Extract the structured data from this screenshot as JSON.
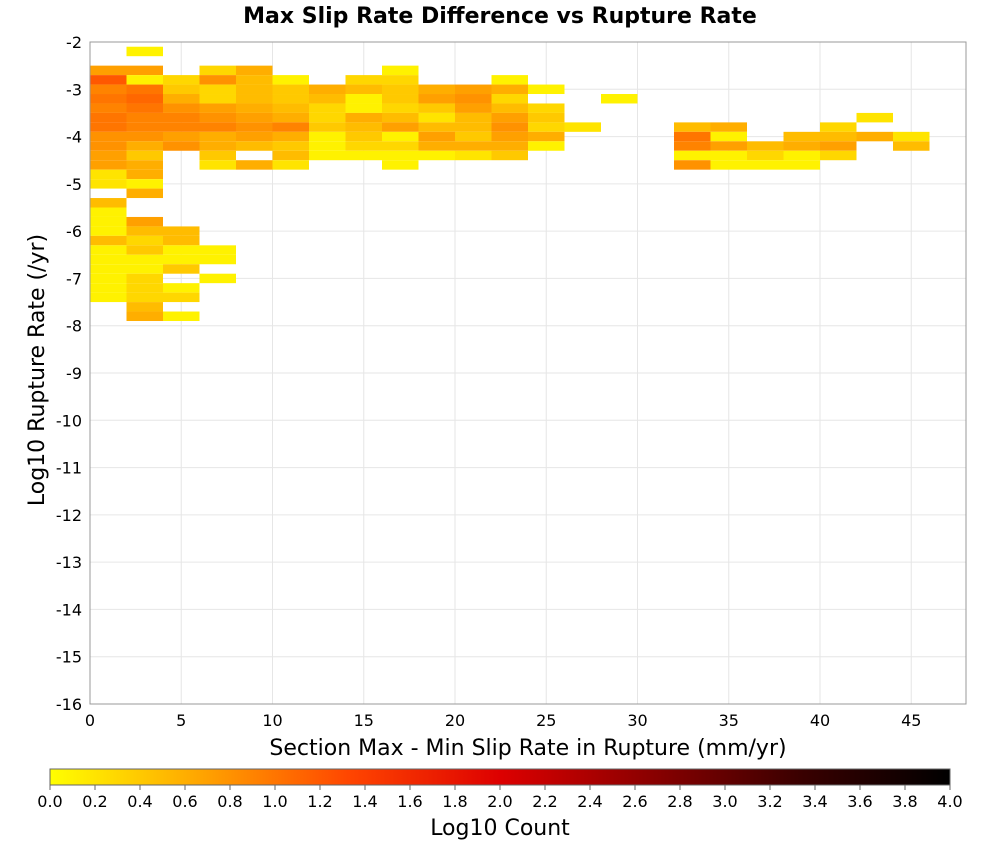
{
  "chart_data": {
    "type": "heatmap",
    "title": "Max Slip Rate Difference vs Rupture Rate",
    "xlabel": "Section Max - Min Slip Rate in Rupture (mm/yr)",
    "ylabel": "Log10 Rupture Rate (/yr)",
    "colorbar_label": "Log10 Count",
    "xlim": [
      0,
      48
    ],
    "ylim": [
      -16,
      -2
    ],
    "x_bin_width": 2,
    "y_bin_height": 0.2,
    "x_ticks": [
      0,
      5,
      10,
      15,
      20,
      25,
      30,
      35,
      40,
      45
    ],
    "x_tick_labels": [
      "0",
      "5",
      "10",
      "15",
      "20",
      "25",
      "30",
      "35",
      "40",
      "45"
    ],
    "y_ticks": [
      -2,
      -3,
      -4,
      -5,
      -6,
      -7,
      -8,
      -9,
      -10,
      -11,
      -12,
      -13,
      -14,
      -15,
      -16
    ],
    "y_tick_labels": [
      "-2",
      "-3",
      "-4",
      "-5",
      "-6",
      "-7",
      "-8",
      "-9",
      "-10",
      "-11",
      "-12",
      "-13",
      "-14",
      "-15",
      "-16"
    ],
    "colorbar_range": [
      0.0,
      4.0
    ],
    "colorbar_ticks": [
      "0.0",
      "0.2",
      "0.4",
      "0.6",
      "0.8",
      "1.0",
      "1.2",
      "1.4",
      "1.6",
      "1.8",
      "2.0",
      "2.2",
      "2.4",
      "2.6",
      "2.8",
      "3.0",
      "3.2",
      "3.4",
      "3.6",
      "3.8",
      "4.0"
    ],
    "colorscale": [
      "#ffff00",
      "#ffa500",
      "#ff4500",
      "#dd0000",
      "#8b0000",
      "#3a0000",
      "#000000"
    ],
    "grid": true,
    "cells": [
      [
        2,
        -2.2,
        0.1
      ],
      [
        0,
        -2.6,
        0.7
      ],
      [
        2,
        -2.6,
        0.7
      ],
      [
        6,
        -2.6,
        0.3
      ],
      [
        8,
        -2.6,
        0.6
      ],
      [
        16,
        -2.6,
        0.1
      ],
      [
        0,
        -2.8,
        1.2
      ],
      [
        2,
        -2.8,
        0.1
      ],
      [
        4,
        -2.8,
        0.3
      ],
      [
        6,
        -2.8,
        0.8
      ],
      [
        8,
        -2.8,
        0.5
      ],
      [
        10,
        -2.8,
        0.1
      ],
      [
        14,
        -2.8,
        0.3
      ],
      [
        16,
        -2.8,
        0.3
      ],
      [
        22,
        -2.8,
        0.1
      ],
      [
        0,
        -3.0,
        0.9
      ],
      [
        2,
        -3.0,
        1.0
      ],
      [
        4,
        -3.0,
        0.4
      ],
      [
        6,
        -3.0,
        0.3
      ],
      [
        8,
        -3.0,
        0.5
      ],
      [
        10,
        -3.0,
        0.4
      ],
      [
        12,
        -3.0,
        0.6
      ],
      [
        14,
        -3.0,
        0.5
      ],
      [
        16,
        -3.0,
        0.4
      ],
      [
        18,
        -3.0,
        0.6
      ],
      [
        20,
        -3.0,
        0.7
      ],
      [
        22,
        -3.0,
        0.6
      ],
      [
        24,
        -3.0,
        0.1
      ],
      [
        0,
        -3.2,
        1.0
      ],
      [
        2,
        -3.2,
        1.1
      ],
      [
        4,
        -3.2,
        0.6
      ],
      [
        6,
        -3.2,
        0.3
      ],
      [
        8,
        -3.2,
        0.5
      ],
      [
        10,
        -3.2,
        0.4
      ],
      [
        12,
        -3.2,
        0.5
      ],
      [
        14,
        -3.2,
        0.1
      ],
      [
        16,
        -3.2,
        0.4
      ],
      [
        18,
        -3.2,
        0.7
      ],
      [
        20,
        -3.2,
        0.8
      ],
      [
        22,
        -3.2,
        0.3
      ],
      [
        28,
        -3.2,
        0.1
      ],
      [
        0,
        -3.4,
        0.9
      ],
      [
        2,
        -3.4,
        1.0
      ],
      [
        4,
        -3.4,
        0.8
      ],
      [
        6,
        -3.4,
        0.7
      ],
      [
        8,
        -3.4,
        0.6
      ],
      [
        10,
        -3.4,
        0.5
      ],
      [
        12,
        -3.4,
        0.3
      ],
      [
        14,
        -3.4,
        0.1
      ],
      [
        16,
        -3.4,
        0.3
      ],
      [
        18,
        -3.4,
        0.4
      ],
      [
        20,
        -3.4,
        0.7
      ],
      [
        22,
        -3.4,
        0.5
      ],
      [
        24,
        -3.4,
        0.3
      ],
      [
        0,
        -3.6,
        1.0
      ],
      [
        2,
        -3.6,
        0.9
      ],
      [
        4,
        -3.6,
        0.9
      ],
      [
        6,
        -3.6,
        0.8
      ],
      [
        8,
        -3.6,
        0.7
      ],
      [
        10,
        -3.6,
        0.6
      ],
      [
        12,
        -3.6,
        0.3
      ],
      [
        14,
        -3.6,
        0.6
      ],
      [
        16,
        -3.6,
        0.5
      ],
      [
        18,
        -3.6,
        0.2
      ],
      [
        20,
        -3.6,
        0.5
      ],
      [
        22,
        -3.6,
        0.7
      ],
      [
        24,
        -3.6,
        0.4
      ],
      [
        42,
        -3.6,
        0.2
      ],
      [
        0,
        -3.8,
        1.0
      ],
      [
        2,
        -3.8,
        0.9
      ],
      [
        4,
        -3.8,
        0.9
      ],
      [
        6,
        -3.8,
        0.9
      ],
      [
        8,
        -3.8,
        0.8
      ],
      [
        10,
        -3.8,
        0.9
      ],
      [
        12,
        -3.8,
        0.4
      ],
      [
        14,
        -3.8,
        0.5
      ],
      [
        16,
        -3.8,
        0.7
      ],
      [
        18,
        -3.8,
        0.5
      ],
      [
        20,
        -3.8,
        0.5
      ],
      [
        22,
        -3.8,
        0.8
      ],
      [
        24,
        -3.8,
        0.3
      ],
      [
        26,
        -3.8,
        0.2
      ],
      [
        32,
        -3.8,
        0.5
      ],
      [
        34,
        -3.8,
        0.6
      ],
      [
        40,
        -3.8,
        0.3
      ],
      [
        0,
        -4.0,
        0.8
      ],
      [
        2,
        -4.0,
        0.8
      ],
      [
        4,
        -4.0,
        0.7
      ],
      [
        6,
        -4.0,
        0.6
      ],
      [
        8,
        -4.0,
        0.7
      ],
      [
        10,
        -4.0,
        0.6
      ],
      [
        12,
        -4.0,
        0.1
      ],
      [
        14,
        -4.0,
        0.4
      ],
      [
        16,
        -4.0,
        0.1
      ],
      [
        18,
        -4.0,
        0.7
      ],
      [
        20,
        -4.0,
        0.4
      ],
      [
        22,
        -4.0,
        0.7
      ],
      [
        24,
        -4.0,
        0.6
      ],
      [
        32,
        -4.0,
        1.0
      ],
      [
        34,
        -4.0,
        0.1
      ],
      [
        38,
        -4.0,
        0.5
      ],
      [
        40,
        -4.0,
        0.5
      ],
      [
        42,
        -4.0,
        0.6
      ],
      [
        44,
        -4.0,
        0.2
      ],
      [
        0,
        -4.2,
        0.8
      ],
      [
        2,
        -4.2,
        0.6
      ],
      [
        4,
        -4.2,
        0.8
      ],
      [
        6,
        -4.2,
        0.6
      ],
      [
        8,
        -4.2,
        0.5
      ],
      [
        10,
        -4.2,
        0.4
      ],
      [
        12,
        -4.2,
        0.1
      ],
      [
        14,
        -4.2,
        0.3
      ],
      [
        16,
        -4.2,
        0.3
      ],
      [
        18,
        -4.2,
        0.6
      ],
      [
        20,
        -4.2,
        0.6
      ],
      [
        22,
        -4.2,
        0.6
      ],
      [
        24,
        -4.2,
        0.1
      ],
      [
        32,
        -4.2,
        0.9
      ],
      [
        34,
        -4.2,
        0.7
      ],
      [
        36,
        -4.2,
        0.5
      ],
      [
        38,
        -4.2,
        0.6
      ],
      [
        40,
        -4.2,
        0.7
      ],
      [
        44,
        -4.2,
        0.5
      ],
      [
        0,
        -4.4,
        0.7
      ],
      [
        2,
        -4.4,
        0.4
      ],
      [
        6,
        -4.4,
        0.4
      ],
      [
        10,
        -4.4,
        0.5
      ],
      [
        12,
        -4.4,
        0.1
      ],
      [
        14,
        -4.4,
        0.1
      ],
      [
        16,
        -4.4,
        0.1
      ],
      [
        18,
        -4.4,
        0.1
      ],
      [
        20,
        -4.4,
        0.2
      ],
      [
        22,
        -4.4,
        0.4
      ],
      [
        32,
        -4.4,
        0.1
      ],
      [
        34,
        -4.4,
        0.1
      ],
      [
        36,
        -4.4,
        0.3
      ],
      [
        38,
        -4.4,
        0.1
      ],
      [
        40,
        -4.4,
        0.3
      ],
      [
        0,
        -4.6,
        0.7
      ],
      [
        2,
        -4.6,
        0.6
      ],
      [
        6,
        -4.6,
        0.2
      ],
      [
        8,
        -4.6,
        0.6
      ],
      [
        10,
        -4.6,
        0.2
      ],
      [
        16,
        -4.6,
        0.1
      ],
      [
        32,
        -4.6,
        0.8
      ],
      [
        34,
        -4.6,
        0.1
      ],
      [
        36,
        -4.6,
        0.1
      ],
      [
        38,
        -4.6,
        0.1
      ],
      [
        0,
        -4.8,
        0.2
      ],
      [
        2,
        -4.8,
        0.6
      ],
      [
        0,
        -5.0,
        0.2
      ],
      [
        2,
        -5.0,
        0.1
      ],
      [
        2,
        -5.2,
        0.6
      ],
      [
        0,
        -5.4,
        0.5
      ],
      [
        0,
        -5.6,
        0.1
      ],
      [
        0,
        -5.8,
        0.1
      ],
      [
        2,
        -5.8,
        0.7
      ],
      [
        0,
        -6.0,
        0.1
      ],
      [
        2,
        -6.0,
        0.5
      ],
      [
        4,
        -6.0,
        0.5
      ],
      [
        0,
        -6.2,
        0.5
      ],
      [
        2,
        -6.2,
        0.3
      ],
      [
        4,
        -6.2,
        0.5
      ],
      [
        0,
        -6.4,
        0.1
      ],
      [
        2,
        -6.4,
        0.4
      ],
      [
        4,
        -6.4,
        0.1
      ],
      [
        6,
        -6.4,
        0.1
      ],
      [
        0,
        -6.6,
        0.1
      ],
      [
        2,
        -6.6,
        0.1
      ],
      [
        4,
        -6.6,
        0.1
      ],
      [
        6,
        -6.6,
        0.1
      ],
      [
        0,
        -6.8,
        0.1
      ],
      [
        2,
        -6.8,
        0.1
      ],
      [
        4,
        -6.8,
        0.4
      ],
      [
        0,
        -7.0,
        0.1
      ],
      [
        2,
        -7.0,
        0.3
      ],
      [
        6,
        -7.0,
        0.1
      ],
      [
        0,
        -7.2,
        0.1
      ],
      [
        2,
        -7.2,
        0.3
      ],
      [
        4,
        -7.2,
        0.1
      ],
      [
        0,
        -7.4,
        0.1
      ],
      [
        2,
        -7.4,
        0.3
      ],
      [
        4,
        -7.4,
        0.3
      ],
      [
        2,
        -7.6,
        0.5
      ],
      [
        2,
        -7.8,
        0.6
      ],
      [
        4,
        -7.8,
        0.1
      ]
    ],
    "extra_cells_note": ""
  }
}
